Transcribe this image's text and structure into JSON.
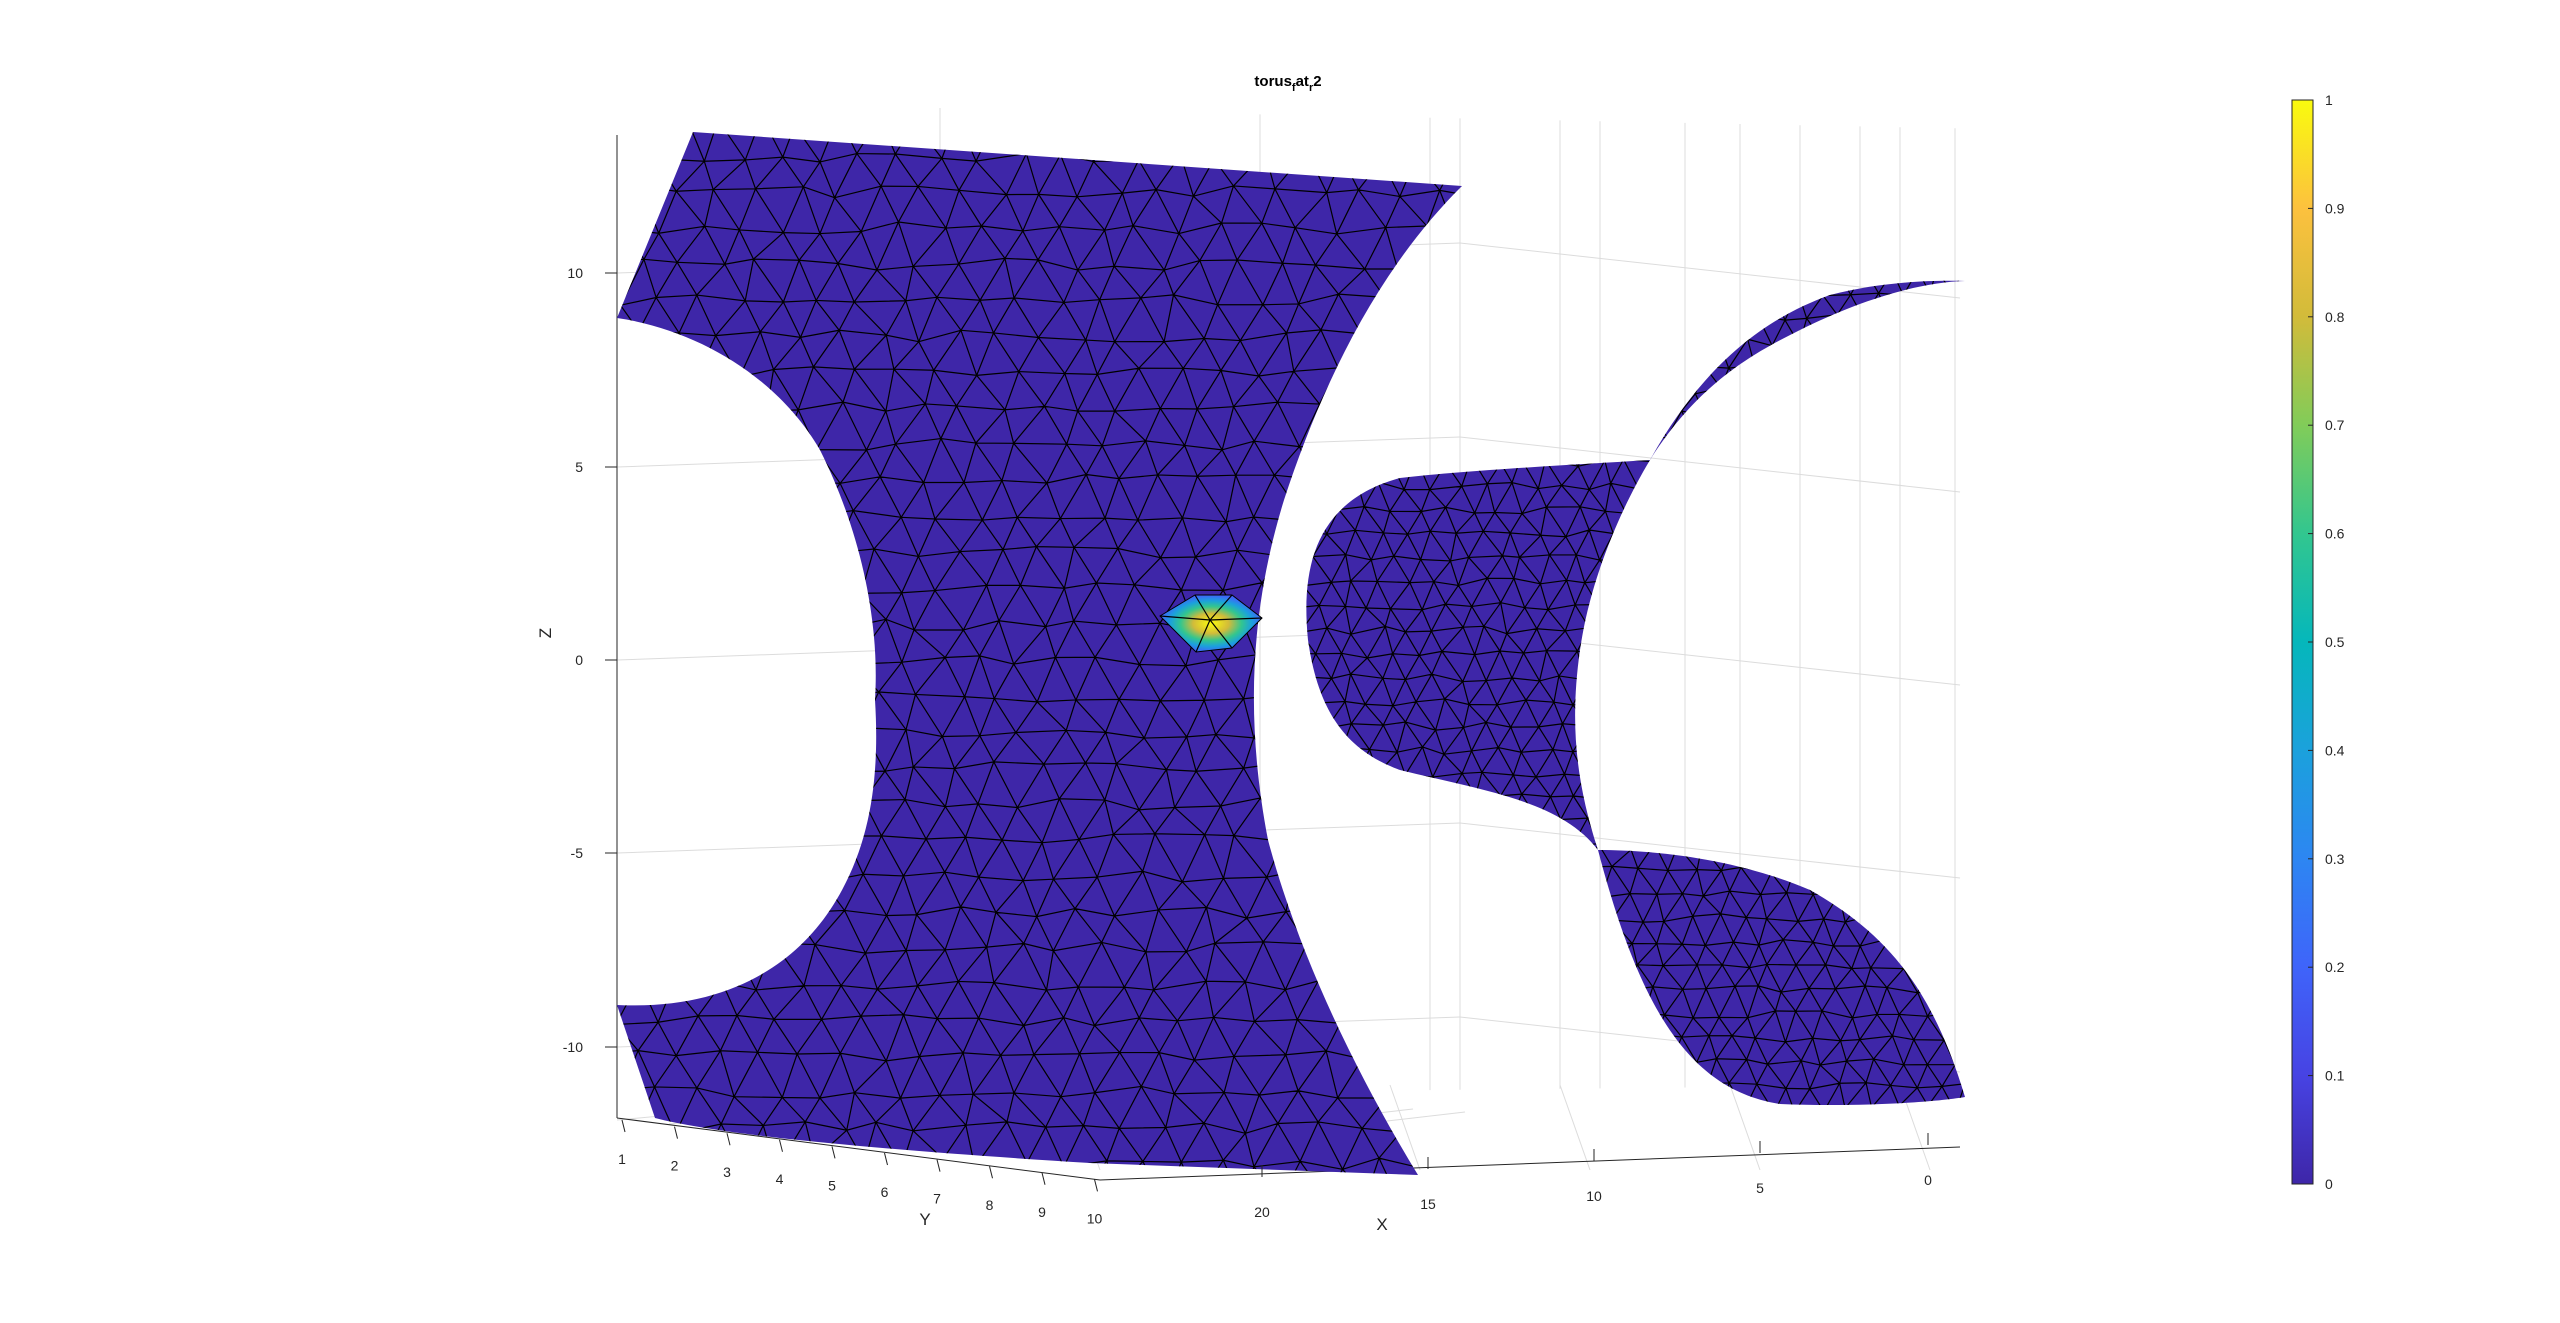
{
  "chart_data": {
    "type": "surface3d",
    "title": {
      "base": "torus",
      "sub1": "f",
      "mid": "at",
      "sub2": "r",
      "tail": "2"
    },
    "xlabel": "X",
    "ylabel": "Y",
    "zlabel": "Z",
    "x_ticks": [
      "20",
      "15",
      "10",
      "5",
      "0"
    ],
    "y_ticks": [
      "1",
      "2",
      "3",
      "4",
      "5",
      "6",
      "7",
      "8",
      "9",
      "10"
    ],
    "z_ticks": [
      "10",
      "5",
      "0",
      "-5",
      "-10"
    ],
    "colorbar": {
      "min": 0,
      "max": 1,
      "ticks": [
        "0",
        "0.1",
        "0.2",
        "0.3",
        "0.4",
        "0.5",
        "0.6",
        "0.7",
        "0.8",
        "0.9",
        "1"
      ],
      "colormap": "parula"
    },
    "surface_color": "#3e26a8",
    "grid": true,
    "highlight": {
      "value": 1,
      "color": "#f9fb0e"
    }
  }
}
